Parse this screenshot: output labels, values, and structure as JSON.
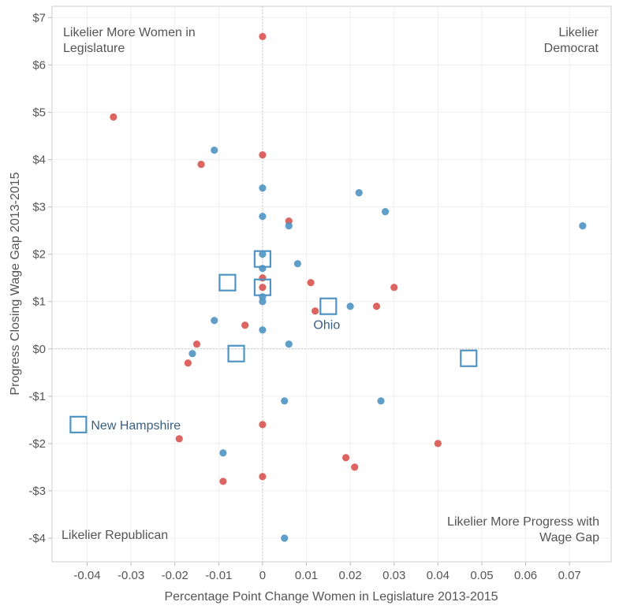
{
  "chart_data": {
    "type": "scatter",
    "xlabel": "Percentage Point Change Women in Legislature 2013-2015",
    "ylabel": "Progress Closing Wage Gap 2013-2015",
    "xlim": [
      -0.048,
      0.0795
    ],
    "ylim": [
      -4.5,
      7.24
    ],
    "x_ticks": [
      -0.04,
      -0.03,
      -0.02,
      -0.01,
      0,
      0.01,
      0.02,
      0.03,
      0.04,
      0.05,
      0.06,
      0.07
    ],
    "x_tick_labels": [
      "-0.04",
      "-0.03",
      "-0.02",
      "-0.01",
      "0",
      "0.01",
      "0.02",
      "0.03",
      "0.04",
      "0.05",
      "0.06",
      "0.07"
    ],
    "y_ticks": [
      -4,
      -3,
      -2,
      -1,
      0,
      1,
      2,
      3,
      4,
      5,
      6,
      7
    ],
    "y_tick_labels": [
      "-$4",
      "-$3",
      "-$2",
      "-$1",
      "$0",
      "$1",
      "$2",
      "$3",
      "$4",
      "$5",
      "$6",
      "$7"
    ],
    "grid": true,
    "reference_lines": {
      "x": 0,
      "y": 0
    },
    "quadrant_notes": [
      {
        "id": "top-left",
        "lines": [
          "Likelier More Women in",
          "Legislature"
        ]
      },
      {
        "id": "top-right",
        "lines": [
          "Likelier",
          "Democrat"
        ]
      },
      {
        "id": "bottom-left",
        "lines": [
          "Likelier Republican"
        ]
      },
      {
        "id": "bottom-right",
        "lines": [
          "Likelier More Progress with",
          "Wage Gap"
        ]
      }
    ],
    "series": [
      {
        "color": "#d9534f",
        "marker": "circle",
        "points": [
          [
            0,
            6.6
          ],
          [
            -0.034,
            4.9
          ],
          [
            0,
            4.1
          ],
          [
            -0.014,
            3.9
          ],
          [
            0.006,
            2.7
          ],
          [
            0,
            1.5
          ],
          [
            0.011,
            1.4
          ],
          [
            0,
            1.3
          ],
          [
            0.03,
            1.3
          ],
          [
            0.026,
            0.9
          ],
          [
            0.012,
            0.8
          ],
          [
            -0.004,
            0.5
          ],
          [
            -0.015,
            0.1
          ],
          [
            -0.017,
            -0.3
          ],
          [
            0,
            -1.6
          ],
          [
            -0.019,
            -1.9
          ],
          [
            0.04,
            -2.0
          ],
          [
            0.019,
            -2.3
          ],
          [
            0.021,
            -2.5
          ],
          [
            0,
            -2.7
          ],
          [
            -0.009,
            -2.8
          ]
        ]
      },
      {
        "color": "#4f94c4",
        "marker": "circle",
        "points": [
          [
            -0.011,
            4.2
          ],
          [
            0,
            3.4
          ],
          [
            0.022,
            3.3
          ],
          [
            0.028,
            2.9
          ],
          [
            0,
            2.8
          ],
          [
            0.073,
            2.6
          ],
          [
            0.006,
            2.6
          ],
          [
            0,
            2.0
          ],
          [
            0.008,
            1.8
          ],
          [
            0,
            1.7
          ],
          [
            0,
            1.1
          ],
          [
            0,
            1.0
          ],
          [
            0.02,
            0.9
          ],
          [
            -0.011,
            0.6
          ],
          [
            0,
            0.4
          ],
          [
            0.006,
            0.1
          ],
          [
            -0.016,
            -0.1
          ],
          [
            0.005,
            -1.1
          ],
          [
            0.027,
            -1.1
          ],
          [
            -0.009,
            -2.2
          ],
          [
            0.005,
            -4.0
          ]
        ]
      },
      {
        "color": "#4f94c4",
        "marker": "square",
        "points": [
          [
            0,
            1.9
          ],
          [
            -0.008,
            1.4
          ],
          [
            0,
            1.3
          ],
          [
            0.015,
            0.9
          ],
          [
            -0.006,
            -0.1
          ],
          [
            0.047,
            -0.2
          ],
          [
            -0.042,
            -1.6
          ]
        ]
      }
    ],
    "annotations": [
      {
        "text": "Ohio",
        "x": 0.015,
        "y": 0.9
      },
      {
        "text": "New Hampshire",
        "x": -0.042,
        "y": -1.6
      }
    ]
  }
}
